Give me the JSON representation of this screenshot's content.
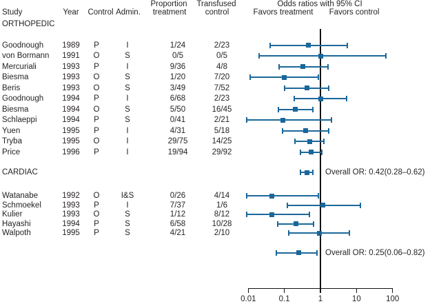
{
  "header": {
    "col_study": "Study",
    "col_year": "Year",
    "col_control": "Control",
    "col_admin": "Admin.",
    "col_proportion_line1": "Proportion",
    "col_proportion_line2": "treatment",
    "col_transfused_line1": "Transfused",
    "col_transfused_line2": "control",
    "plot_title": "Odds ratios with 95% CI",
    "favors_treatment": "Favors treatment",
    "favors_control": "Favors control"
  },
  "colors": {
    "ci_blue": "#1a679a",
    "axis_black": "#111111",
    "text": "#231f20"
  },
  "chart_data": {
    "type": "forest",
    "x_scale": "log10",
    "x_range": [
      0.01,
      100
    ],
    "reference_line": 1,
    "x_ticks": [
      0.01,
      0.1,
      1,
      10,
      100
    ],
    "x_tick_labels": [
      "0.01",
      "0.1",
      "1",
      "10",
      "100"
    ],
    "groups": [
      {
        "label": "ORTHOPEDIC",
        "studies": [
          {
            "study": "Goodnough",
            "year": "1989",
            "control": "P",
            "admin": "I",
            "proportion_treatment": "1/24",
            "transfused_control": "2/23",
            "or": 0.46,
            "ci_low": 0.04,
            "ci_high": 5.6
          },
          {
            "study": "von Bormann",
            "year": "1991",
            "control": "O",
            "admin": "S",
            "proportion_treatment": "0/5",
            "transfused_control": "0/5",
            "or": 1.0,
            "ci_low": 0.02,
            "ci_high": 65
          },
          {
            "study": "Mercuriali",
            "year": "1993",
            "control": "P",
            "admin": "I",
            "proportion_treatment": "9/36",
            "transfused_control": "4/8",
            "or": 0.33,
            "ci_low": 0.07,
            "ci_high": 1.6
          },
          {
            "study": "Biesma",
            "year": "1993",
            "control": "O",
            "admin": "S",
            "proportion_treatment": "1/20",
            "transfused_control": "7/20",
            "or": 0.1,
            "ci_low": 0.011,
            "ci_high": 0.89
          },
          {
            "study": "Beris",
            "year": "1993",
            "control": "O",
            "admin": "S",
            "proportion_treatment": "3/49",
            "transfused_control": "7/52",
            "or": 0.42,
            "ci_low": 0.1,
            "ci_high": 1.72
          },
          {
            "study": "Goodnough",
            "year": "1994",
            "control": "P",
            "admin": "I",
            "proportion_treatment": "6/68",
            "transfused_control": "2/23",
            "or": 1.02,
            "ci_low": 0.19,
            "ci_high": 5.4
          },
          {
            "study": "Biesma",
            "year": "1994",
            "control": "O",
            "admin": "S",
            "proportion_treatment": "5/50",
            "transfused_control": "16/45",
            "or": 0.2,
            "ci_low": 0.067,
            "ci_high": 0.61
          },
          {
            "study": "Schlaeppi",
            "year": "1994",
            "control": "P",
            "admin": "S",
            "proportion_treatment": "0/41",
            "transfused_control": "2/21",
            "or": 0.09,
            "ci_low": 0.009,
            "ci_high": 2.05
          },
          {
            "study": "Yuen",
            "year": "1995",
            "control": "P",
            "admin": "I",
            "proportion_treatment": "4/31",
            "transfused_control": "5/18",
            "or": 0.39,
            "ci_low": 0.088,
            "ci_high": 1.68
          },
          {
            "study": "Tryba",
            "year": "1995",
            "control": "O",
            "admin": "I",
            "proportion_treatment": "29/75",
            "transfused_control": "14/25",
            "or": 0.5,
            "ci_low": 0.2,
            "ci_high": 1.24
          },
          {
            "study": "Price",
            "year": "1996",
            "control": "P",
            "admin": "I",
            "proportion_treatment": "19/94",
            "transfused_control": "29/92",
            "or": 0.55,
            "ci_low": 0.28,
            "ci_high": 1.07
          }
        ],
        "overall": {
          "label": "Overall OR: 0.42(0.28–0.62)",
          "or": 0.42,
          "ci_low": 0.28,
          "ci_high": 0.62
        }
      },
      {
        "label": "CARDIAC",
        "studies": [
          {
            "study": "Watanabe",
            "year": "1992",
            "control": "O",
            "admin": "I&S",
            "proportion_treatment": "0/26",
            "transfused_control": "4/14",
            "or": 0.044,
            "ci_low": 0.009,
            "ci_high": 0.89
          },
          {
            "study": "Schmoekel",
            "year": "1993",
            "control": "P",
            "admin": "I",
            "proportion_treatment": "7/37",
            "transfused_control": "1/6",
            "or": 1.17,
            "ci_low": 0.12,
            "ci_high": 12.6
          },
          {
            "study": "Kulier",
            "year": "1993",
            "control": "O",
            "admin": "S",
            "proportion_treatment": "1/12",
            "transfused_control": "8/12",
            "or": 0.045,
            "ci_low": 0.009,
            "ci_high": 0.49
          },
          {
            "study": "Hayashi",
            "year": "1994",
            "control": "P",
            "admin": "S",
            "proportion_treatment": "6/58",
            "transfused_control": "10/28",
            "or": 0.21,
            "ci_low": 0.066,
            "ci_high": 0.65
          },
          {
            "study": "Walpoth",
            "year": "1995",
            "control": "P",
            "admin": "S",
            "proportion_treatment": "4/21",
            "transfused_control": "2/10",
            "or": 0.94,
            "ci_low": 0.13,
            "ci_high": 6.4
          }
        ],
        "overall": {
          "label": "Overall OR: 0.25(0.06–0.82)",
          "or": 0.25,
          "ci_low": 0.06,
          "ci_high": 0.82
        }
      }
    ]
  }
}
